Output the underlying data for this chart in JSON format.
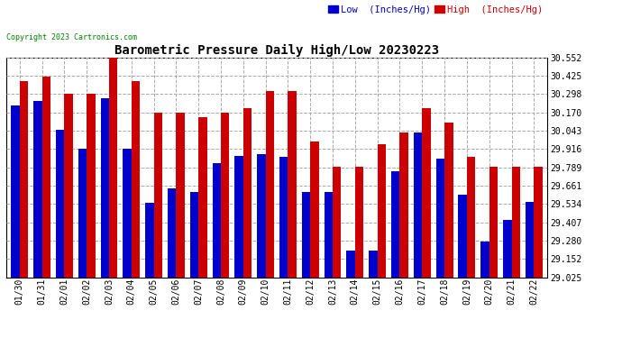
{
  "title": "Barometric Pressure Daily High/Low 20230223",
  "copyright": "Copyright 2023 Cartronics.com",
  "legend_low": "Low  (Inches/Hg)",
  "legend_high": "High  (Inches/Hg)",
  "dates": [
    "01/30",
    "01/31",
    "02/01",
    "02/02",
    "02/03",
    "02/04",
    "02/05",
    "02/06",
    "02/07",
    "02/08",
    "02/09",
    "02/10",
    "02/11",
    "02/12",
    "02/13",
    "02/14",
    "02/15",
    "02/16",
    "02/17",
    "02/18",
    "02/19",
    "02/20",
    "02/21",
    "02/22"
  ],
  "high": [
    30.39,
    30.42,
    30.3,
    30.3,
    30.55,
    30.39,
    30.17,
    30.17,
    30.14,
    30.17,
    30.2,
    30.32,
    30.32,
    29.97,
    29.79,
    29.79,
    29.95,
    30.03,
    30.2,
    30.1,
    29.86,
    29.79,
    29.79,
    29.79
  ],
  "low": [
    30.22,
    30.25,
    30.05,
    29.92,
    30.27,
    29.92,
    29.54,
    29.64,
    29.62,
    29.82,
    29.87,
    29.88,
    29.86,
    29.62,
    29.62,
    29.21,
    29.21,
    29.76,
    30.03,
    29.85,
    29.6,
    29.27,
    29.42,
    29.55
  ],
  "ylim_min": 29.025,
  "ylim_max": 30.552,
  "yticks": [
    29.025,
    29.152,
    29.28,
    29.407,
    29.534,
    29.661,
    29.789,
    29.916,
    30.043,
    30.17,
    30.298,
    30.425,
    30.552
  ],
  "bar_width": 0.38,
  "low_color": "#0000cc",
  "high_color": "#cc0000",
  "bg_color": "#ffffff",
  "grid_color": "#aaaaaa",
  "title_fontsize": 10,
  "tick_fontsize": 7,
  "legend_fontsize": 7.5,
  "copyright_fontsize": 6,
  "copyright_color": "green"
}
